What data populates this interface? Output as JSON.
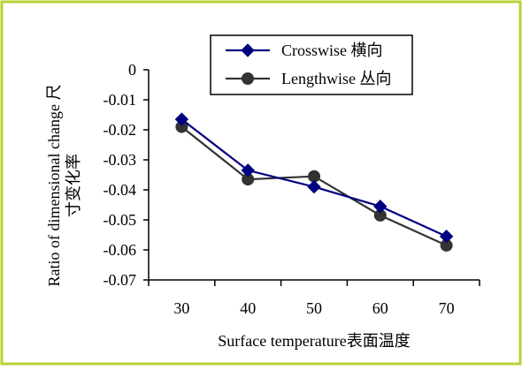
{
  "colors": {
    "border": "#b5d334",
    "crosswise": "#000080",
    "lengthwise": "#333333",
    "axis": "#000000"
  },
  "chart_data": {
    "type": "line",
    "title": "",
    "xlabel": "Surface temperature表面温度",
    "ylabel_line1": "Ratio of dimensional change 尺",
    "ylabel_line2": "寸变化率",
    "x": [
      30,
      40,
      50,
      60,
      70
    ],
    "x_tick_labels": [
      "30",
      "40",
      "50",
      "60",
      "70"
    ],
    "ylim": [
      -0.07,
      0
    ],
    "y_ticks": [
      0,
      -0.01,
      -0.02,
      -0.03,
      -0.04,
      -0.05,
      -0.06,
      -0.07
    ],
    "y_tick_labels": [
      "0",
      "-0.01",
      "-0.02",
      "-0.03",
      "-0.04",
      "-0.05",
      "-0.06",
      "-0.07"
    ],
    "grid": false,
    "legend_position": "top-right",
    "series": [
      {
        "name": "Crosswise 横向",
        "marker": "diamond",
        "color": "#000080",
        "values": [
          -0.0165,
          -0.0335,
          -0.039,
          -0.0455,
          -0.0555
        ]
      },
      {
        "name": "Lengthwise 丛向",
        "marker": "circle",
        "color": "#333333",
        "values": [
          -0.019,
          -0.0365,
          -0.0355,
          -0.0485,
          -0.0585
        ]
      }
    ]
  }
}
